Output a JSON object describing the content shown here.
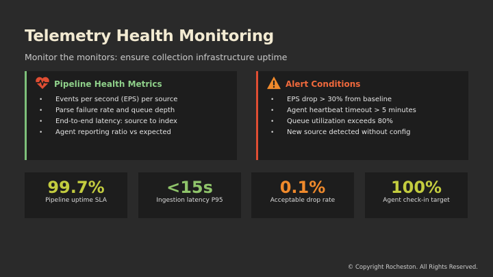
{
  "header": {
    "title": "Telemetry Health Monitoring",
    "subtitle": "Monitor the monitors: ensure collection infrastructure uptime"
  },
  "panels": [
    {
      "title": "Pipeline Health Metrics",
      "icon": "heartbeat-icon",
      "accent": "#7dc07a",
      "items": [
        "Events per second (EPS) per source",
        "Parse failure rate and queue depth",
        "End-to-end latency: source to index",
        "Agent reporting ratio vs expected"
      ]
    },
    {
      "title": "Alert Conditions",
      "icon": "warning-icon",
      "accent": "#e04e33",
      "items": [
        "EPS drop > 30% from baseline",
        "Agent heartbeat timeout > 5 minutes",
        "Queue utilization exceeds 80%",
        "New source detected without config"
      ]
    }
  ],
  "stats": [
    {
      "value": "99.7%",
      "label": "Pipeline uptime SLA",
      "color": "#c3cc3f"
    },
    {
      "value": "<15s",
      "label": "Ingestion latency P95",
      "color": "#8fc46a"
    },
    {
      "value": "0.1%",
      "label": "Acceptable drop rate",
      "color": "#f08a2c"
    },
    {
      "value": "100%",
      "label": "Agent check-in target",
      "color": "#c3cc3f"
    }
  ],
  "footer": "© Copyright Rocheston. All Rights Reserved."
}
